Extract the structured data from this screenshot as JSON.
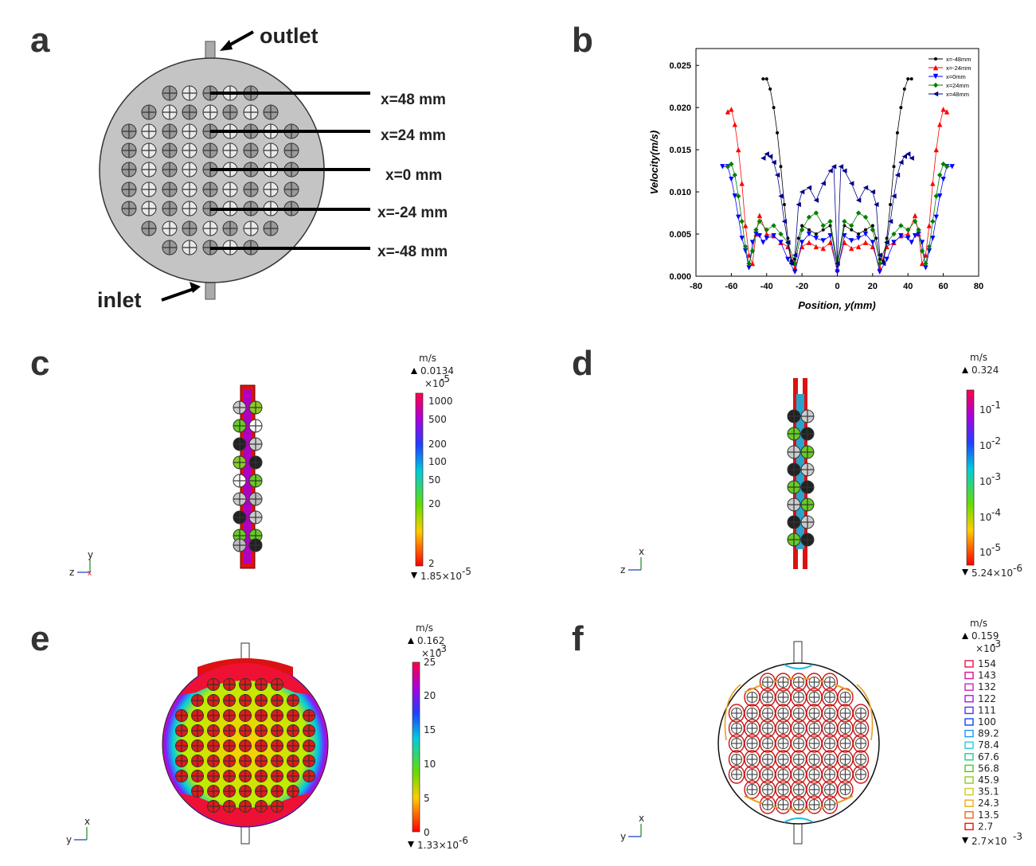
{
  "panels": {
    "a": "a",
    "b": "b",
    "c": "c",
    "d": "d",
    "e": "e",
    "f": "f"
  },
  "panel_a": {
    "outlet": "outlet",
    "inlet": "inlet",
    "lines": [
      "x=48 mm",
      "x=24 mm",
      "x=0 mm",
      "x=-24 mm",
      "x=-48 mm"
    ]
  },
  "panel_c": {
    "unit": "m/s",
    "max": "0.0134",
    "scale": "×10",
    "scale_exp": "-5",
    "ticks": [
      "1000",
      "500",
      "200",
      "100",
      "50",
      "20",
      "2"
    ],
    "min": "1.85×10",
    "min_exp": "-5",
    "axis_v": "y",
    "axis_h": "z"
  },
  "panel_d": {
    "unit": "m/s",
    "max": "0.324",
    "ticks": [
      {
        "base": "10",
        "exp": "-1"
      },
      {
        "base": "10",
        "exp": "-2"
      },
      {
        "base": "10",
        "exp": "-3"
      },
      {
        "base": "10",
        "exp": "-4"
      },
      {
        "base": "10",
        "exp": "-5"
      }
    ],
    "min": "5.24×10",
    "min_exp": "-6",
    "axis_v": "x",
    "axis_h": "z"
  },
  "panel_e": {
    "unit": "m/s",
    "max": "0.162",
    "scale": "×10",
    "scale_exp": "-3",
    "ticks": [
      "25",
      "20",
      "15",
      "10",
      "5",
      "0"
    ],
    "min": "1.33×10",
    "min_exp": "-6",
    "axis_v": "x",
    "axis_h": "y"
  },
  "panel_f": {
    "unit": "m/s",
    "max": "0.159",
    "scale": "×10",
    "scale_exp": "-3",
    "ticks": [
      "154",
      "143",
      "132",
      "122",
      "111",
      "100",
      "89.2",
      "78.4",
      "67.6",
      "56.8",
      "45.9",
      "35.1",
      "24.3",
      "13.5",
      "2.7"
    ],
    "min": "2.7×10",
    "min_exp": "-3",
    "axis_v": "x",
    "axis_h": "y"
  },
  "colors": {
    "x-48": "#000000",
    "x-24": "#ff0000",
    "x0": "#0000ff",
    "x24": "#008000",
    "x48": "#00008b"
  },
  "chart_data": {
    "type": "line",
    "xlabel": "Position, y(mm)",
    "ylabel": "Velocity(m/s)",
    "xlim": [
      -80,
      80
    ],
    "ylim": [
      0,
      0.027
    ],
    "xticks": [
      "-80",
      "-60",
      "-40",
      "-20",
      "0",
      "20",
      "40",
      "60",
      "80"
    ],
    "yticks": [
      "0.000",
      "0.005",
      "0.010",
      "0.015",
      "0.020",
      "0.025"
    ],
    "legend_position": "top-right",
    "series": [
      {
        "name": "x=-48mm",
        "color": "#000000",
        "marker": "circle",
        "x": [
          -42,
          -40,
          -38,
          -36,
          -34,
          -32,
          -30,
          -28,
          -26,
          -24,
          -22,
          -20,
          -16,
          -12,
          -8,
          -4,
          0,
          4,
          8,
          12,
          16,
          20,
          22,
          24,
          26,
          28,
          30,
          32,
          34,
          36,
          38,
          40,
          42
        ],
        "y": [
          0.0234,
          0.0234,
          0.0222,
          0.02,
          0.017,
          0.013,
          0.0085,
          0.0045,
          0.0018,
          0.002,
          0.0045,
          0.006,
          0.0055,
          0.005,
          0.0055,
          0.006,
          0.0012,
          0.006,
          0.0055,
          0.005,
          0.0055,
          0.006,
          0.0045,
          0.002,
          0.0018,
          0.0045,
          0.0085,
          0.013,
          0.017,
          0.02,
          0.0222,
          0.0234,
          0.0234
        ]
      },
      {
        "name": "x=-24mm",
        "color": "#ff0000",
        "marker": "triangle-up",
        "x": [
          -62,
          -60,
          -58,
          -56,
          -54,
          -52,
          -50,
          -48,
          -46,
          -44,
          -40,
          -36,
          -32,
          -28,
          -24,
          -20,
          -16,
          -12,
          -8,
          -4,
          0,
          4,
          8,
          12,
          16,
          20,
          24,
          28,
          32,
          36,
          40,
          44,
          46,
          48,
          50,
          52,
          54,
          56,
          58,
          60,
          62
        ],
        "y": [
          0.0195,
          0.0198,
          0.018,
          0.015,
          0.011,
          0.006,
          0.0025,
          0.0015,
          0.005,
          0.0072,
          0.005,
          0.0048,
          0.004,
          0.0035,
          0.001,
          0.0035,
          0.004,
          0.0035,
          0.0033,
          0.004,
          0.0008,
          0.004,
          0.0033,
          0.0035,
          0.004,
          0.0035,
          0.001,
          0.0035,
          0.004,
          0.0048,
          0.005,
          0.0072,
          0.005,
          0.0015,
          0.0025,
          0.006,
          0.011,
          0.015,
          0.018,
          0.0198,
          0.0195
        ]
      },
      {
        "name": "x=0mm",
        "color": "#0000ff",
        "marker": "triangle-down",
        "x": [
          -65,
          -62,
          -60,
          -58,
          -56,
          -54,
          -52,
          -50,
          -48,
          -46,
          -44,
          -42,
          -40,
          -36,
          -32,
          -28,
          -24,
          -20,
          -16,
          -12,
          -8,
          -4,
          0,
          4,
          8,
          12,
          16,
          20,
          24,
          28,
          32,
          36,
          40,
          42,
          44,
          46,
          48,
          50,
          52,
          54,
          56,
          58,
          60,
          62,
          65
        ],
        "y": [
          0.013,
          0.013,
          0.0115,
          0.0095,
          0.007,
          0.0045,
          0.003,
          0.001,
          0.004,
          0.005,
          0.0048,
          0.004,
          0.0045,
          0.0048,
          0.004,
          0.002,
          0.0005,
          0.004,
          0.005,
          0.0045,
          0.0042,
          0.0048,
          0.0005,
          0.0048,
          0.0042,
          0.0045,
          0.005,
          0.004,
          0.0005,
          0.002,
          0.004,
          0.0048,
          0.0045,
          0.004,
          0.0048,
          0.005,
          0.004,
          0.001,
          0.003,
          0.0045,
          0.007,
          0.0095,
          0.0115,
          0.013,
          0.013
        ]
      },
      {
        "name": "x=24mm",
        "color": "#008000",
        "marker": "diamond",
        "x": [
          -62,
          -60,
          -58,
          -56,
          -54,
          -52,
          -50,
          -48,
          -46,
          -44,
          -40,
          -36,
          -32,
          -28,
          -24,
          -20,
          -16,
          -12,
          -8,
          -4,
          0,
          4,
          8,
          12,
          16,
          20,
          24,
          28,
          32,
          36,
          40,
          44,
          46,
          48,
          50,
          52,
          54,
          56,
          58,
          60,
          62
        ],
        "y": [
          0.013,
          0.0133,
          0.012,
          0.0095,
          0.0065,
          0.0035,
          0.0015,
          0.003,
          0.0055,
          0.0065,
          0.0055,
          0.006,
          0.005,
          0.004,
          0.0015,
          0.0055,
          0.007,
          0.0075,
          0.006,
          0.0065,
          0.0015,
          0.0065,
          0.006,
          0.0075,
          0.007,
          0.0055,
          0.0015,
          0.004,
          0.005,
          0.006,
          0.0055,
          0.0065,
          0.0055,
          0.003,
          0.0015,
          0.0035,
          0.0065,
          0.0095,
          0.012,
          0.0133,
          0.013
        ]
      },
      {
        "name": "x=48mm",
        "color": "#00008b",
        "marker": "triangle-left",
        "x": [
          -42,
          -40,
          -38,
          -36,
          -34,
          -32,
          -30,
          -28,
          -26,
          -24,
          -22,
          -20,
          -16,
          -12,
          -8,
          -4,
          -2,
          0,
          2,
          4,
          8,
          12,
          16,
          20,
          22,
          24,
          26,
          28,
          30,
          32,
          34,
          36,
          38,
          40,
          42
        ],
        "y": [
          0.014,
          0.0145,
          0.0142,
          0.0135,
          0.012,
          0.0095,
          0.0065,
          0.004,
          0.0015,
          0.0025,
          0.0085,
          0.01,
          0.0105,
          0.009,
          0.011,
          0.0125,
          0.013,
          0.0015,
          0.013,
          0.0125,
          0.011,
          0.009,
          0.0105,
          0.01,
          0.0085,
          0.0025,
          0.0015,
          0.004,
          0.0065,
          0.0095,
          0.012,
          0.0135,
          0.0142,
          0.0145,
          0.014
        ]
      }
    ]
  }
}
